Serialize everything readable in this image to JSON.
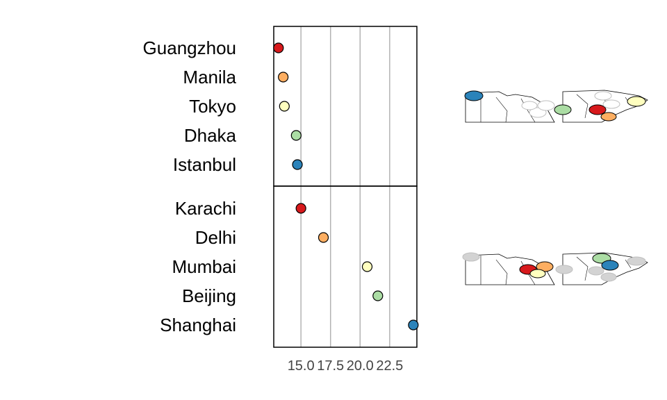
{
  "chart_data": {
    "type": "dot",
    "x_ticks": [
      15.0,
      17.5,
      20.0,
      22.5
    ],
    "x_tick_labels": [
      "15.0",
      "17.5",
      "20.0",
      "22.5"
    ],
    "xlim": [
      12.7,
      24.8
    ],
    "grid": true,
    "panels": [
      {
        "cities": [
          {
            "name": "Guangzhou",
            "value": 13.1,
            "color": "#d7191c"
          },
          {
            "name": "Manila",
            "value": 13.5,
            "color": "#fdae61"
          },
          {
            "name": "Tokyo",
            "value": 13.6,
            "color": "#ffffbf"
          },
          {
            "name": "Dhaka",
            "value": 14.6,
            "color": "#abdda4"
          },
          {
            "name": "Istanbul",
            "value": 14.7,
            "color": "#2b83ba"
          }
        ],
        "map_markers": [
          {
            "color": "#2b83ba",
            "gray": false
          },
          {
            "color": "#d7191c",
            "gray": false
          },
          {
            "color": "#abdda4",
            "gray": false
          },
          {
            "color": "#fdae61",
            "gray": false
          },
          {
            "color": "#ffffbf",
            "gray": false
          },
          {
            "color": "#ffffff",
            "gray": true
          },
          {
            "color": "#ffffff",
            "gray": true
          },
          {
            "color": "#ffffff",
            "gray": true
          },
          {
            "color": "#ffffff",
            "gray": true
          },
          {
            "color": "#ffffff",
            "gray": true
          }
        ]
      },
      {
        "cities": [
          {
            "name": "Karachi",
            "value": 15.0,
            "color": "#d7191c"
          },
          {
            "name": "Delhi",
            "value": 16.9,
            "color": "#fdae61"
          },
          {
            "name": "Mumbai",
            "value": 20.6,
            "color": "#ffffbf"
          },
          {
            "name": "Beijing",
            "value": 21.5,
            "color": "#abdda4"
          },
          {
            "name": "Shanghai",
            "value": 24.5,
            "color": "#2b83ba"
          }
        ],
        "map_markers": [
          {
            "color": "#d7191c",
            "gray": false
          },
          {
            "color": "#fdae61",
            "gray": false
          },
          {
            "color": "#ffffbf",
            "gray": false
          },
          {
            "color": "#abdda4",
            "gray": false
          },
          {
            "color": "#2b83ba",
            "gray": false
          },
          {
            "color": "#d3d3d3",
            "gray": true
          },
          {
            "color": "#d3d3d3",
            "gray": true
          },
          {
            "color": "#d3d3d3",
            "gray": true
          },
          {
            "color": "#d3d3d3",
            "gray": true
          },
          {
            "color": "#d3d3d3",
            "gray": true
          }
        ]
      }
    ]
  }
}
